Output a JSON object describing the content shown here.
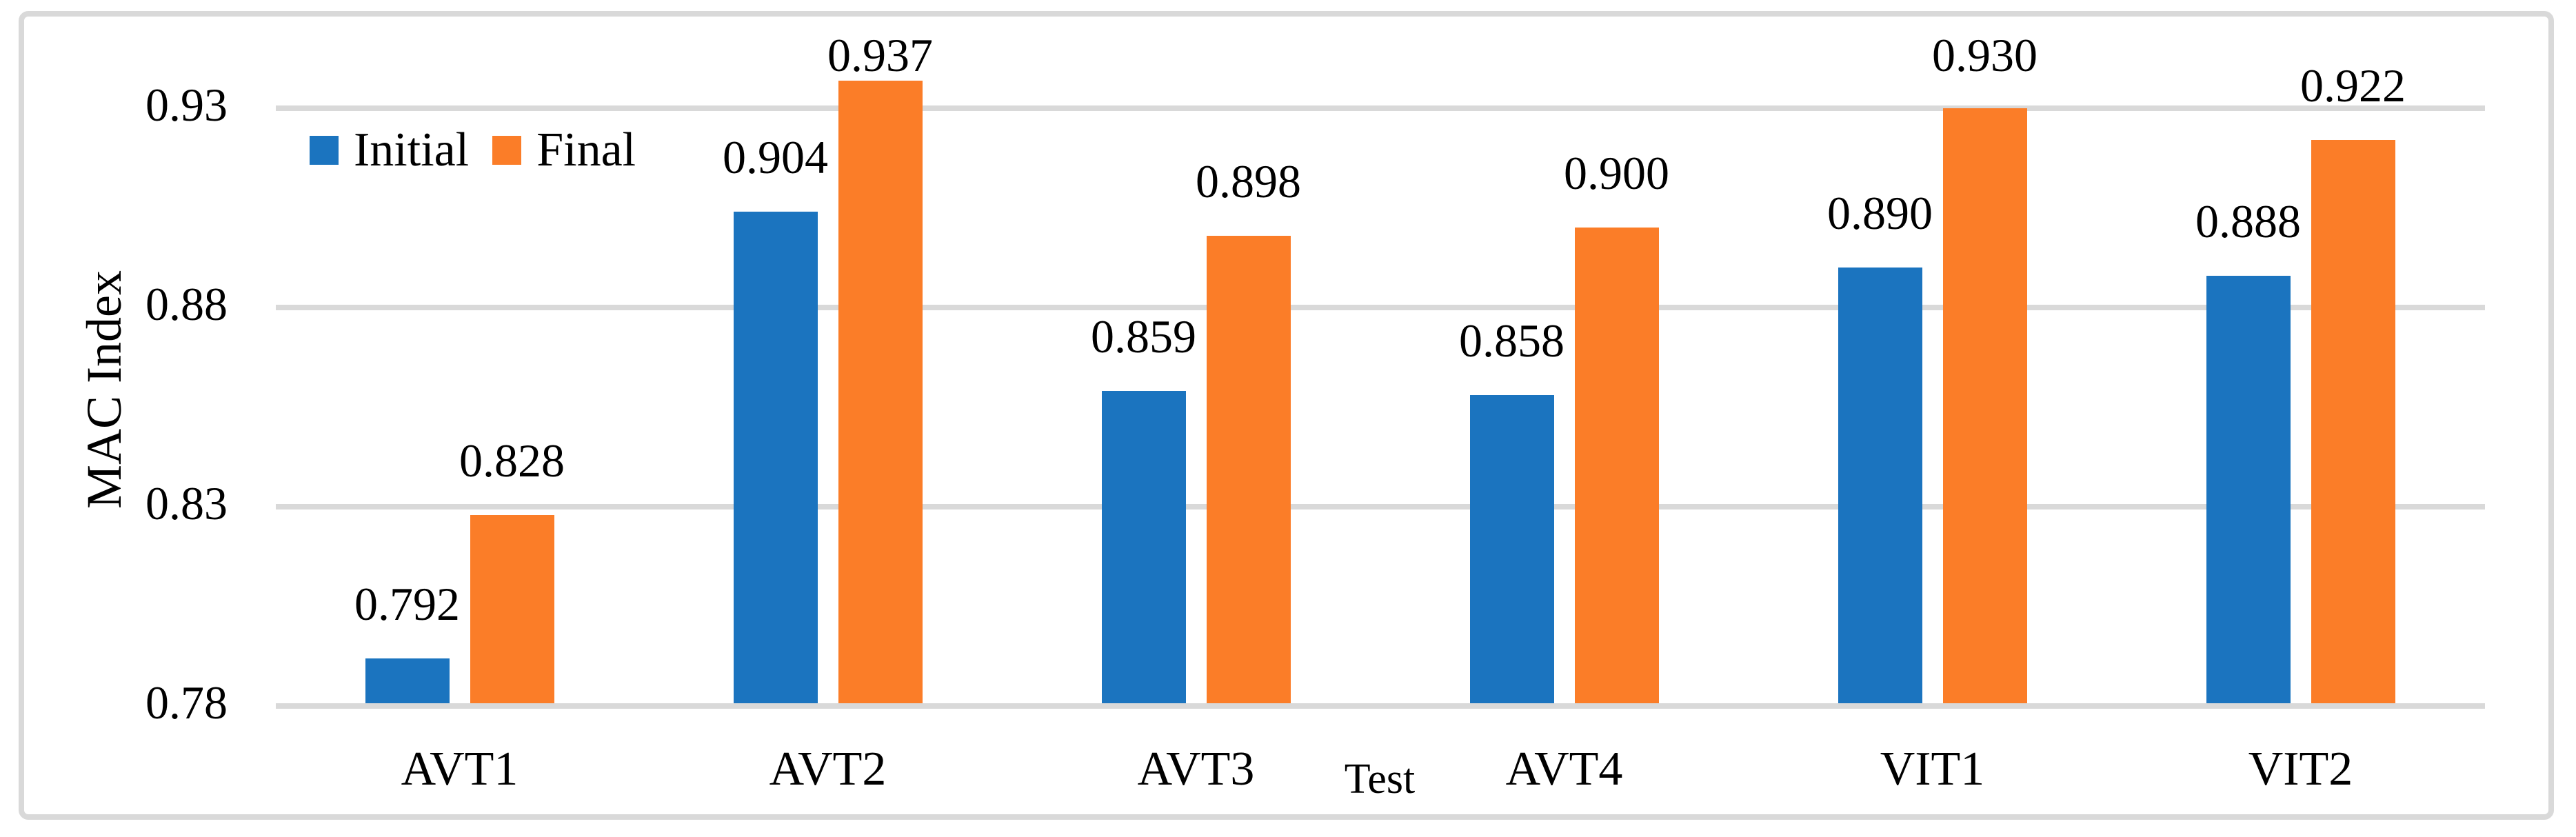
{
  "chart_data": {
    "type": "bar",
    "title": "",
    "categories": [
      "AVT1",
      "AVT2",
      "AVT3",
      "AVT4",
      "VIT1",
      "VIT2"
    ],
    "series": [
      {
        "name": "Initial",
        "color": "#1B74BF",
        "values": [
          0.792,
          0.904,
          0.859,
          0.858,
          0.89,
          0.888
        ],
        "labels": [
          "0.792",
          "0.904",
          "0.859",
          "0.858",
          "0.890",
          "0.888"
        ]
      },
      {
        "name": "Final",
        "color": "#FB7D28",
        "values": [
          0.828,
          0.937,
          0.898,
          0.9,
          0.93,
          0.922
        ],
        "labels": [
          "0.828",
          "0.937",
          "0.898",
          "0.900",
          "0.930",
          "0.922"
        ]
      }
    ],
    "xlabel": "Test",
    "ylabel": "MAC Index",
    "yticks": [
      "0.78",
      "0.83",
      "0.88",
      "0.93"
    ],
    "ytick_values": [
      0.78,
      0.83,
      0.88,
      0.93
    ],
    "ylim": [
      0.78,
      0.955
    ],
    "grid": true,
    "legend_position": "top-left-inside",
    "colors": {
      "grid": "#D9D9D9",
      "frame": "#D9D9D9",
      "text": "#000000"
    }
  }
}
